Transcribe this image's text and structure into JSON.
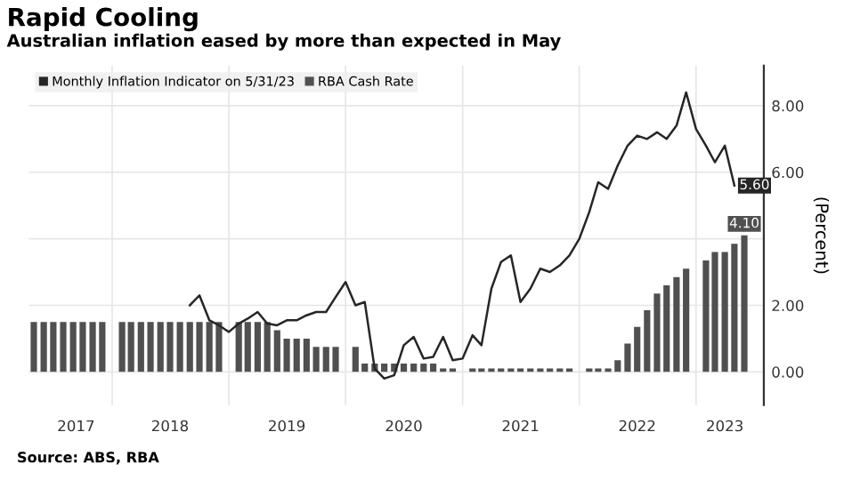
{
  "chart_data": {
    "type": "bar",
    "title": "Rapid Cooling",
    "subtitle": "Australian inflation eased by more than expected in May",
    "ylabel": "(Percent)",
    "annotations": [
      "Source: ABS, RBA"
    ],
    "legend": "top left",
    "grid": true,
    "xlim": [
      "2017-04-15",
      "2023-08-01"
    ],
    "xticks": [
      {
        "value": "2017-09-10",
        "label": "2017"
      },
      {
        "value": "2018-01-01",
        "label": null
      },
      {
        "value": "2018-07-01",
        "label": "2018"
      },
      {
        "value": "2019-01-01",
        "label": null
      },
      {
        "value": "2019-07-01",
        "label": "2019"
      },
      {
        "value": "2020-01-01",
        "label": null
      },
      {
        "value": "2020-07-01",
        "label": "2020"
      },
      {
        "value": "2021-01-01",
        "label": null
      },
      {
        "value": "2021-07-01",
        "label": "2021"
      },
      {
        "value": "2022-01-01",
        "label": null
      },
      {
        "value": "2022-07-01",
        "label": "2022"
      },
      {
        "value": "2023-01-01",
        "label": null
      },
      {
        "value": "2023-04-01",
        "label": "2023"
      }
    ],
    "ylim": [
      -1.0,
      9.2
    ],
    "yticks": [
      {
        "value": 0,
        "label": "0.00"
      },
      {
        "value": 2,
        "label": "2.00"
      },
      {
        "value": 4,
        "label": null
      },
      {
        "value": 6,
        "label": "6.00"
      },
      {
        "value": 8,
        "label": "8.00"
      }
    ],
    "series": [
      {
        "name": "Monthly Inflation Indicator on 5/31/23",
        "type": "line",
        "color": "#262626",
        "x": [
          "2018-09",
          "2018-10",
          "2018-11",
          "2018-12",
          "2019-01",
          "2019-02",
          "2019-03",
          "2019-04",
          "2019-05",
          "2019-06",
          "2019-07",
          "2019-08",
          "2019-09",
          "2019-10",
          "2019-11",
          "2019-12",
          "2020-01",
          "2020-02",
          "2020-03",
          "2020-04",
          "2020-05",
          "2020-06",
          "2020-07",
          "2020-08",
          "2020-09",
          "2020-10",
          "2020-11",
          "2020-12",
          "2021-01",
          "2021-02",
          "2021-03",
          "2021-04",
          "2021-05",
          "2021-06",
          "2021-07",
          "2021-08",
          "2021-09",
          "2021-10",
          "2021-11",
          "2021-12",
          "2022-01",
          "2022-02",
          "2022-03",
          "2022-04",
          "2022-05",
          "2022-06",
          "2022-07",
          "2022-08",
          "2022-09",
          "2022-10",
          "2022-11",
          "2022-12",
          "2023-01",
          "2023-02",
          "2023-03",
          "2023-04",
          "2023-05"
        ],
        "values": [
          2.0,
          2.3,
          1.55,
          1.4,
          1.2,
          1.45,
          1.6,
          1.8,
          1.45,
          1.4,
          1.55,
          1.55,
          1.7,
          1.8,
          1.8,
          2.25,
          2.7,
          2.0,
          2.1,
          0.1,
          -0.2,
          -0.1,
          0.8,
          1.05,
          0.4,
          0.45,
          1.05,
          0.35,
          0.4,
          1.1,
          0.8,
          2.5,
          3.3,
          3.5,
          2.1,
          2.5,
          3.1,
          3.0,
          3.2,
          3.5,
          4.0,
          4.8,
          5.7,
          5.5,
          6.2,
          6.8,
          7.1,
          7.0,
          7.2,
          7.0,
          7.4,
          8.4,
          7.3,
          6.8,
          6.3,
          6.8,
          5.6
        ],
        "value_labels": [
          null,
          null,
          null,
          null,
          null,
          null,
          null,
          null,
          null,
          null,
          null,
          null,
          null,
          null,
          null,
          null,
          null,
          null,
          null,
          null,
          null,
          null,
          null,
          null,
          null,
          null,
          null,
          null,
          null,
          null,
          null,
          null,
          null,
          null,
          null,
          null,
          null,
          null,
          null,
          null,
          null,
          null,
          null,
          null,
          null,
          null,
          null,
          null,
          null,
          null,
          null,
          null,
          null,
          null,
          null,
          null,
          "5.60"
        ]
      },
      {
        "name": "RBA Cash Rate",
        "color": "#505050",
        "x": [
          "2017-05",
          "2017-06",
          "2017-07",
          "2017-08",
          "2017-09",
          "2017-10",
          "2017-11",
          "2017-12",
          "2018-02",
          "2018-03",
          "2018-04",
          "2018-05",
          "2018-06",
          "2018-07",
          "2018-08",
          "2018-09",
          "2018-10",
          "2018-11",
          "2018-12",
          "2019-02",
          "2019-03",
          "2019-04",
          "2019-05",
          "2019-06",
          "2019-07",
          "2019-08",
          "2019-09",
          "2019-10",
          "2019-11",
          "2019-12",
          "2020-02",
          "2020-03",
          "2020-04",
          "2020-05",
          "2020-06",
          "2020-07",
          "2020-08",
          "2020-09",
          "2020-10",
          "2020-11",
          "2020-12",
          "2021-02",
          "2021-03",
          "2021-04",
          "2021-05",
          "2021-06",
          "2021-07",
          "2021-08",
          "2021-09",
          "2021-10",
          "2021-11",
          "2021-12",
          "2022-02",
          "2022-03",
          "2022-04",
          "2022-05",
          "2022-06",
          "2022-07",
          "2022-08",
          "2022-09",
          "2022-10",
          "2022-11",
          "2022-12",
          "2023-02",
          "2023-03",
          "2023-04",
          "2023-05",
          "2023-06"
        ],
        "values": [
          1.5,
          1.5,
          1.5,
          1.5,
          1.5,
          1.5,
          1.5,
          1.5,
          1.5,
          1.5,
          1.5,
          1.5,
          1.5,
          1.5,
          1.5,
          1.5,
          1.5,
          1.5,
          1.5,
          1.5,
          1.5,
          1.5,
          1.5,
          1.25,
          1.0,
          1.0,
          1.0,
          0.75,
          0.75,
          0.75,
          0.75,
          0.25,
          0.25,
          0.25,
          0.25,
          0.25,
          0.25,
          0.25,
          0.25,
          0.1,
          0.1,
          0.1,
          0.1,
          0.1,
          0.1,
          0.1,
          0.1,
          0.1,
          0.1,
          0.1,
          0.1,
          0.1,
          0.1,
          0.1,
          0.1,
          0.35,
          0.85,
          1.35,
          1.85,
          2.35,
          2.6,
          2.85,
          3.1,
          3.35,
          3.6,
          3.6,
          3.85,
          4.1
        ],
        "value_labels": [
          null,
          null,
          null,
          null,
          null,
          null,
          null,
          null,
          null,
          null,
          null,
          null,
          null,
          null,
          null,
          null,
          null,
          null,
          null,
          null,
          null,
          null,
          null,
          null,
          null,
          null,
          null,
          null,
          null,
          null,
          null,
          null,
          null,
          null,
          null,
          null,
          null,
          null,
          null,
          null,
          null,
          null,
          null,
          null,
          null,
          null,
          null,
          null,
          null,
          null,
          null,
          null,
          null,
          null,
          null,
          null,
          null,
          null,
          null,
          null,
          null,
          null,
          null,
          null,
          null,
          null,
          null,
          "4.10"
        ]
      }
    ]
  }
}
